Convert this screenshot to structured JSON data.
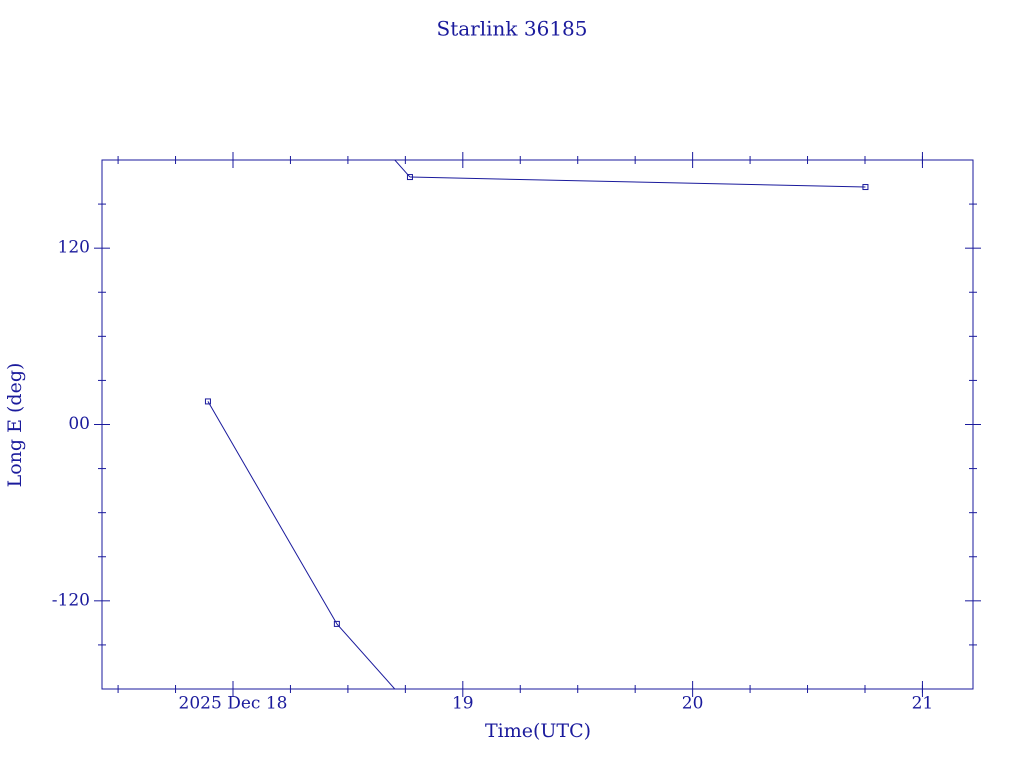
{
  "chart_data": {
    "type": "line",
    "title": "Starlink 36185",
    "xlabel": "Time(UTC)",
    "ylabel": "Long E (deg)",
    "x": [
      17.891,
      18.452,
      18.77,
      20.752
    ],
    "series": [
      {
        "color": "#1a1a9c",
        "values": [
          15.7,
          -135.7,
          168.4,
          161.6
        ]
      }
    ],
    "wrap": 360,
    "xlim": [
      17.43,
      21.22
    ],
    "xticks": [
      {
        "value": 18,
        "label": "2025 Dec 18"
      },
      19,
      20,
      21
    ],
    "xminor": [
      17.5,
      17.75,
      18.25,
      18.5,
      18.75,
      19.25,
      19.5,
      19.75,
      20.25,
      20.5,
      20.75,
      21.0
    ],
    "ylim": [
      -180,
      180
    ],
    "yticks": [
      -120,
      {
        "value": 0,
        "label": "00"
      },
      120
    ],
    "yminor": [
      -150,
      -90,
      -60,
      -30,
      30,
      60,
      90,
      150
    ],
    "axis_color": "#1a1a9c"
  }
}
